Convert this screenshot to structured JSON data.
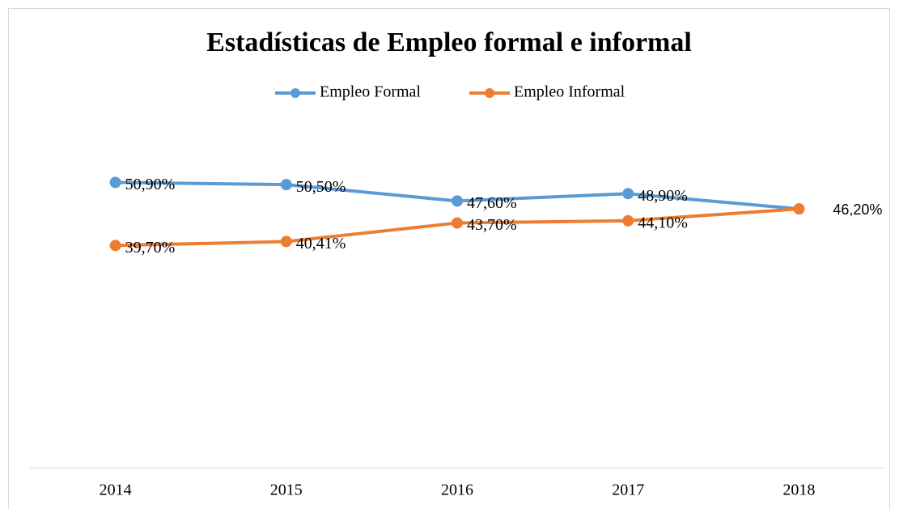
{
  "chart_data": {
    "type": "line",
    "title": "Estadísticas de Empleo formal e informal",
    "categories": [
      "2014",
      "2015",
      "2016",
      "2017",
      "2018"
    ],
    "series": [
      {
        "name": "Empleo Formal",
        "color": "#5b9bd5",
        "values": [
          50.9,
          50.5,
          47.6,
          48.9,
          46.2
        ],
        "value_labels": [
          "50,90%",
          "50,50%",
          "47,60%",
          "48,90%",
          null
        ]
      },
      {
        "name": "Empleo Informal",
        "color": "#ed7d31",
        "values": [
          39.7,
          40.41,
          43.7,
          44.1,
          46.2
        ],
        "value_labels": [
          "39,70%",
          "40,41%",
          "43,70%",
          "44,10%",
          "46,20%"
        ]
      }
    ],
    "ylim": [
      0,
      60
    ],
    "grid": false,
    "legend": "top"
  }
}
